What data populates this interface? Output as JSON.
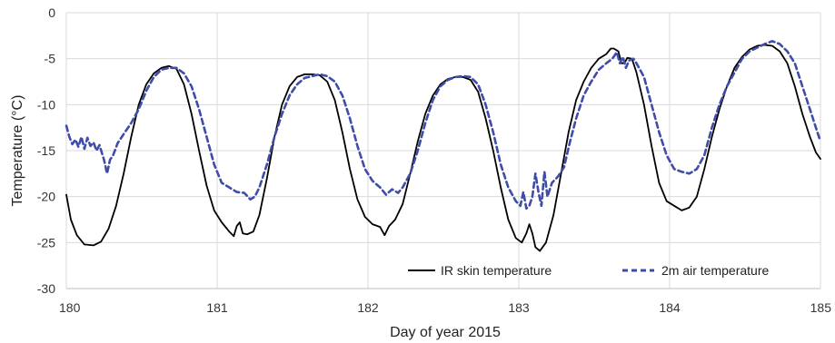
{
  "chart_data": {
    "type": "line",
    "xlabel": "Day of year 2015",
    "ylabel": "Temperature (°C)",
    "xlim": [
      180,
      185
    ],
    "ylim": [
      -30,
      0
    ],
    "xticks": [
      "180",
      "181",
      "182",
      "183",
      "184",
      "185"
    ],
    "yticks": [
      "0",
      "-5",
      "-10",
      "-15",
      "-20",
      "-25",
      "-30"
    ],
    "grid": true,
    "legend_position": "bottom-right",
    "series": [
      {
        "name": "IR skin temperature",
        "color": "#000000",
        "style": "solid",
        "points": [
          [
            180.0,
            -19.8
          ],
          [
            180.03,
            -22.5
          ],
          [
            180.07,
            -24.2
          ],
          [
            180.12,
            -25.2
          ],
          [
            180.18,
            -25.3
          ],
          [
            180.23,
            -24.9
          ],
          [
            180.28,
            -23.5
          ],
          [
            180.33,
            -21.0
          ],
          [
            180.38,
            -17.5
          ],
          [
            180.43,
            -13.5
          ],
          [
            180.48,
            -10.0
          ],
          [
            180.53,
            -7.8
          ],
          [
            180.58,
            -6.6
          ],
          [
            180.63,
            -6.0
          ],
          [
            180.68,
            -5.8
          ],
          [
            180.73,
            -6.1
          ],
          [
            180.78,
            -7.8
          ],
          [
            180.83,
            -11.0
          ],
          [
            180.88,
            -15.0
          ],
          [
            180.93,
            -18.8
          ],
          [
            180.98,
            -21.5
          ],
          [
            181.03,
            -22.8
          ],
          [
            181.08,
            -23.8
          ],
          [
            181.11,
            -24.3
          ],
          [
            181.13,
            -23.2
          ],
          [
            181.15,
            -22.8
          ],
          [
            181.17,
            -24.0
          ],
          [
            181.2,
            -24.1
          ],
          [
            181.24,
            -23.8
          ],
          [
            181.28,
            -22.0
          ],
          [
            181.33,
            -18.0
          ],
          [
            181.38,
            -13.5
          ],
          [
            181.43,
            -10.0
          ],
          [
            181.48,
            -8.0
          ],
          [
            181.53,
            -7.0
          ],
          [
            181.58,
            -6.7
          ],
          [
            181.63,
            -6.7
          ],
          [
            181.68,
            -6.8
          ],
          [
            181.73,
            -7.5
          ],
          [
            181.78,
            -9.5
          ],
          [
            181.83,
            -13.0
          ],
          [
            181.88,
            -17.0
          ],
          [
            181.93,
            -20.3
          ],
          [
            181.98,
            -22.2
          ],
          [
            182.03,
            -23.0
          ],
          [
            182.08,
            -23.3
          ],
          [
            182.11,
            -24.2
          ],
          [
            182.14,
            -23.2
          ],
          [
            182.18,
            -22.5
          ],
          [
            182.23,
            -20.8
          ],
          [
            182.28,
            -17.5
          ],
          [
            182.33,
            -14.0
          ],
          [
            182.38,
            -11.0
          ],
          [
            182.43,
            -9.0
          ],
          [
            182.48,
            -7.8
          ],
          [
            182.53,
            -7.2
          ],
          [
            182.58,
            -7.0
          ],
          [
            182.63,
            -7.0
          ],
          [
            182.68,
            -7.3
          ],
          [
            182.73,
            -8.6
          ],
          [
            182.78,
            -11.5
          ],
          [
            182.83,
            -15.0
          ],
          [
            182.88,
            -19.0
          ],
          [
            182.93,
            -22.5
          ],
          [
            182.98,
            -24.5
          ],
          [
            183.02,
            -25.0
          ],
          [
            183.05,
            -24.0
          ],
          [
            183.07,
            -23.0
          ],
          [
            183.09,
            -24.0
          ],
          [
            183.11,
            -25.5
          ],
          [
            183.14,
            -25.9
          ],
          [
            183.18,
            -25.0
          ],
          [
            183.23,
            -22.0
          ],
          [
            183.28,
            -17.5
          ],
          [
            183.33,
            -13.0
          ],
          [
            183.38,
            -9.5
          ],
          [
            183.43,
            -7.5
          ],
          [
            183.48,
            -6.0
          ],
          [
            183.53,
            -5.0
          ],
          [
            183.58,
            -4.5
          ],
          [
            183.61,
            -3.9
          ],
          [
            183.63,
            -3.9
          ],
          [
            183.66,
            -4.2
          ],
          [
            183.68,
            -5.5
          ],
          [
            183.7,
            -5.5
          ],
          [
            183.72,
            -4.9
          ],
          [
            183.75,
            -5.0
          ],
          [
            183.78,
            -6.5
          ],
          [
            183.83,
            -10.0
          ],
          [
            183.88,
            -14.5
          ],
          [
            183.93,
            -18.5
          ],
          [
            183.98,
            -20.5
          ],
          [
            184.03,
            -21.0
          ],
          [
            184.08,
            -21.5
          ],
          [
            184.13,
            -21.2
          ],
          [
            184.18,
            -20.0
          ],
          [
            184.23,
            -17.0
          ],
          [
            184.28,
            -13.5
          ],
          [
            184.33,
            -10.5
          ],
          [
            184.38,
            -8.0
          ],
          [
            184.43,
            -6.0
          ],
          [
            184.48,
            -4.8
          ],
          [
            184.53,
            -4.0
          ],
          [
            184.58,
            -3.6
          ],
          [
            184.63,
            -3.5
          ],
          [
            184.68,
            -3.6
          ],
          [
            184.73,
            -4.2
          ],
          [
            184.78,
            -5.5
          ],
          [
            184.83,
            -8.0
          ],
          [
            184.88,
            -11.0
          ],
          [
            184.93,
            -13.5
          ],
          [
            184.97,
            -15.2
          ],
          [
            185.0,
            -15.9
          ]
        ]
      },
      {
        "name": "2m air temperature",
        "color": "#3f4ca8",
        "style": "dashed",
        "points": [
          [
            180.0,
            -12.3
          ],
          [
            180.02,
            -13.5
          ],
          [
            180.04,
            -14.3
          ],
          [
            180.06,
            -13.8
          ],
          [
            180.08,
            -14.6
          ],
          [
            180.1,
            -13.5
          ],
          [
            180.12,
            -14.8
          ],
          [
            180.14,
            -13.6
          ],
          [
            180.16,
            -14.5
          ],
          [
            180.18,
            -14.1
          ],
          [
            180.2,
            -15.0
          ],
          [
            180.22,
            -14.4
          ],
          [
            180.25,
            -16.0
          ],
          [
            180.27,
            -17.5
          ],
          [
            180.29,
            -16.0
          ],
          [
            180.31,
            -15.5
          ],
          [
            180.34,
            -14.2
          ],
          [
            180.38,
            -13.2
          ],
          [
            180.43,
            -12.0
          ],
          [
            180.48,
            -10.5
          ],
          [
            180.53,
            -8.5
          ],
          [
            180.58,
            -7.0
          ],
          [
            180.63,
            -6.2
          ],
          [
            180.68,
            -6.0
          ],
          [
            180.73,
            -6.0
          ],
          [
            180.78,
            -6.6
          ],
          [
            180.83,
            -8.0
          ],
          [
            180.88,
            -10.5
          ],
          [
            180.93,
            -13.5
          ],
          [
            180.98,
            -16.5
          ],
          [
            181.03,
            -18.5
          ],
          [
            181.08,
            -19.0
          ],
          [
            181.13,
            -19.5
          ],
          [
            181.18,
            -19.6
          ],
          [
            181.22,
            -20.3
          ],
          [
            181.25,
            -20.0
          ],
          [
            181.28,
            -19.0
          ],
          [
            181.33,
            -16.5
          ],
          [
            181.38,
            -13.5
          ],
          [
            181.43,
            -11.0
          ],
          [
            181.48,
            -9.0
          ],
          [
            181.53,
            -7.8
          ],
          [
            181.58,
            -7.1
          ],
          [
            181.63,
            -6.9
          ],
          [
            181.68,
            -6.7
          ],
          [
            181.73,
            -6.9
          ],
          [
            181.78,
            -7.5
          ],
          [
            181.83,
            -9.0
          ],
          [
            181.88,
            -11.5
          ],
          [
            181.93,
            -14.5
          ],
          [
            181.98,
            -17.0
          ],
          [
            182.03,
            -18.3
          ],
          [
            182.08,
            -19.0
          ],
          [
            182.12,
            -19.8
          ],
          [
            182.16,
            -19.2
          ],
          [
            182.2,
            -19.6
          ],
          [
            182.23,
            -19.0
          ],
          [
            182.28,
            -17.5
          ],
          [
            182.33,
            -15.0
          ],
          [
            182.38,
            -12.0
          ],
          [
            182.43,
            -9.5
          ],
          [
            182.48,
            -8.0
          ],
          [
            182.53,
            -7.3
          ],
          [
            182.58,
            -7.0
          ],
          [
            182.63,
            -6.9
          ],
          [
            182.68,
            -7.0
          ],
          [
            182.73,
            -7.8
          ],
          [
            182.78,
            -10.0
          ],
          [
            182.83,
            -13.0
          ],
          [
            182.88,
            -16.5
          ],
          [
            182.93,
            -19.0
          ],
          [
            182.98,
            -20.5
          ],
          [
            183.01,
            -21.0
          ],
          [
            183.03,
            -19.5
          ],
          [
            183.05,
            -21.3
          ],
          [
            183.07,
            -21.0
          ],
          [
            183.09,
            -20.0
          ],
          [
            183.11,
            -17.5
          ],
          [
            183.13,
            -19.5
          ],
          [
            183.15,
            -21.0
          ],
          [
            183.17,
            -17.3
          ],
          [
            183.19,
            -20.0
          ],
          [
            183.22,
            -18.5
          ],
          [
            183.26,
            -17.8
          ],
          [
            183.3,
            -16.8
          ],
          [
            183.34,
            -14.0
          ],
          [
            183.38,
            -11.5
          ],
          [
            183.43,
            -9.0
          ],
          [
            183.48,
            -7.5
          ],
          [
            183.53,
            -6.2
          ],
          [
            183.58,
            -5.5
          ],
          [
            183.62,
            -5.0
          ],
          [
            183.65,
            -4.3
          ],
          [
            183.67,
            -5.5
          ],
          [
            183.69,
            -4.8
          ],
          [
            183.71,
            -6.0
          ],
          [
            183.73,
            -5.2
          ],
          [
            183.76,
            -5.0
          ],
          [
            183.78,
            -5.5
          ],
          [
            183.83,
            -7.0
          ],
          [
            183.88,
            -10.0
          ],
          [
            183.93,
            -13.0
          ],
          [
            183.98,
            -15.5
          ],
          [
            184.03,
            -17.0
          ],
          [
            184.08,
            -17.3
          ],
          [
            184.13,
            -17.5
          ],
          [
            184.18,
            -17.0
          ],
          [
            184.23,
            -15.5
          ],
          [
            184.28,
            -12.5
          ],
          [
            184.33,
            -10.0
          ],
          [
            184.38,
            -8.0
          ],
          [
            184.43,
            -6.5
          ],
          [
            184.48,
            -5.0
          ],
          [
            184.53,
            -4.2
          ],
          [
            184.58,
            -3.8
          ],
          [
            184.63,
            -3.4
          ],
          [
            184.68,
            -3.1
          ],
          [
            184.73,
            -3.4
          ],
          [
            184.78,
            -4.2
          ],
          [
            184.83,
            -5.5
          ],
          [
            184.88,
            -8.0
          ],
          [
            184.93,
            -10.5
          ],
          [
            184.97,
            -12.5
          ],
          [
            185.0,
            -14.0
          ]
        ]
      }
    ]
  }
}
